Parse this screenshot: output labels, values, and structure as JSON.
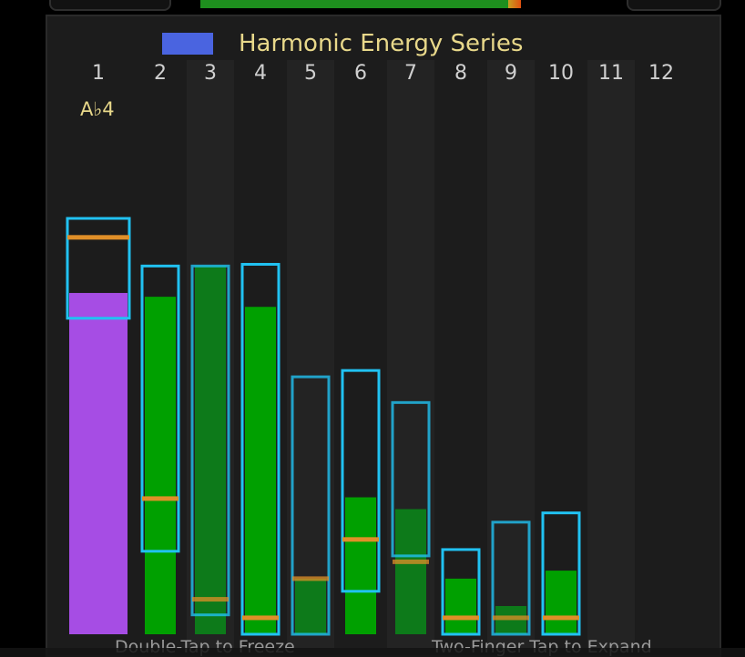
{
  "title": "Harmonic Energy Series",
  "note": "A♭4",
  "hints": {
    "left": "Double-Tap to Freeze",
    "right": "Two-Finger Tap to Expand"
  },
  "colors": {
    "fundamental": "#a64de4",
    "harmonic": "#00a000",
    "harmonic_dim": "#0d7a1a",
    "outline": "#21c2f2",
    "peak_marker": "#e08f28",
    "legend": "#4a64e0",
    "title": "#e8d88a"
  },
  "chart_data": {
    "type": "bar",
    "title": "Harmonic Energy Series",
    "legend": [
      "Harmonic Energy Series"
    ],
    "legend_position": "top-left",
    "ylim": [
      0,
      1
    ],
    "categories": [
      "1",
      "2",
      "3",
      "4",
      "5",
      "6",
      "7",
      "8",
      "9",
      "10",
      "11",
      "12"
    ],
    "series": [
      {
        "name": "Harmonic Energy Series",
        "values": [
          0.81,
          0.801,
          0.875,
          0.777,
          0.132,
          0.325,
          0.297,
          0.132,
          0.067,
          0.151,
          0,
          0
        ]
      }
    ],
    "range_low": [
      0.75,
      0.197,
      0.046,
      0.0,
      0.0,
      0.102,
      0.186,
      0.0,
      0.0,
      0.0,
      null,
      null
    ],
    "range_high": [
      0.987,
      0.874,
      0.874,
      0.878,
      0.611,
      0.626,
      0.55,
      0.201,
      0.266,
      0.288,
      null,
      null
    ],
    "peak_marker": [
      0.942,
      0.322,
      0.083,
      0.039,
      0.132,
      0.225,
      0.172,
      0.039,
      0.039,
      0.039,
      null,
      null
    ],
    "dimmed": [
      false,
      false,
      true,
      false,
      true,
      false,
      true,
      false,
      true,
      false,
      false,
      false
    ],
    "shaded_columns": [
      3,
      5,
      7,
      9,
      11
    ]
  }
}
